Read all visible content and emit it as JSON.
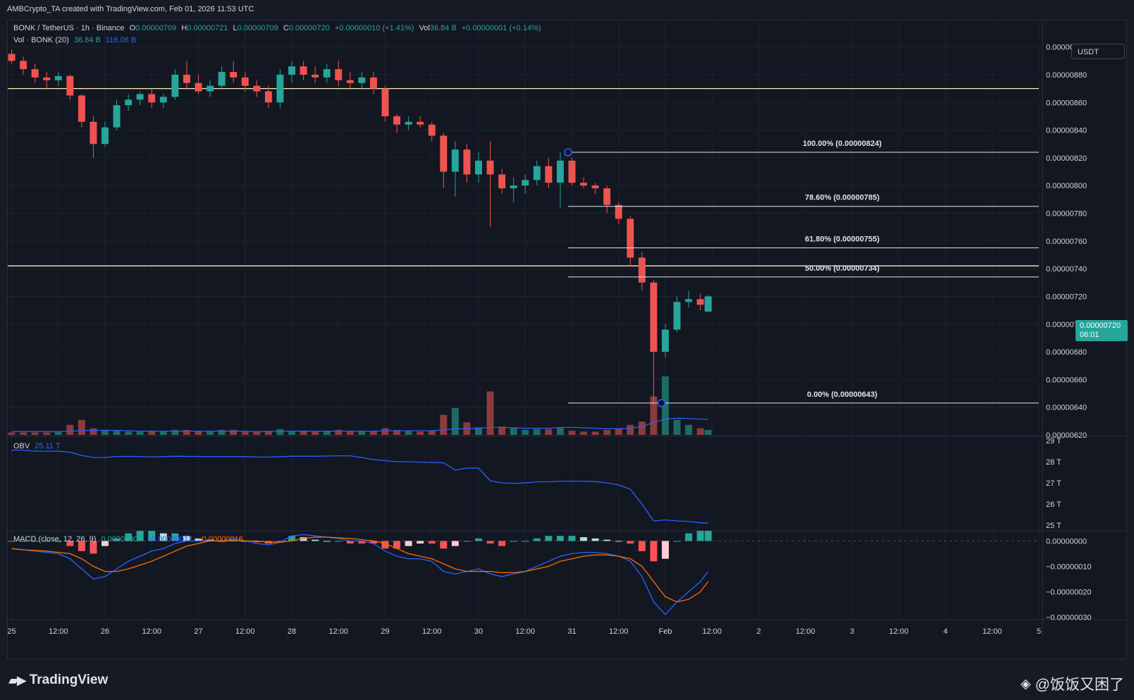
{
  "header": {
    "credit": "AMBCrypto_TA created with TradingView.com, Feb 01, 2026 11:53 UTC"
  },
  "legend": {
    "symbol": "BONK / TetherUS · 1h · Binance",
    "o_label": "O",
    "o": "0.00000709",
    "h_label": "H",
    "h": "0.00000721",
    "l_label": "L",
    "l": "0.00000709",
    "c_label": "C",
    "c": "0.00000720",
    "change": "+0.00000010 (+1.41%)",
    "vol_label": "Vol",
    "vol": "36.84 B",
    "vol_change": "+0.00000001 (+0.14%)",
    "vol_ind": "Vol · BONK (20)",
    "vol_val": "36.84 B",
    "vol_ma": "116.06 B",
    "obv_label": "OBV",
    "obv_val": "25.11 T",
    "macd_label": "MACD (close, 12, 26, 9)",
    "macd_hist": "0.00000004",
    "macd_line": "−0.00000012",
    "macd_signal": "−0.00000016"
  },
  "currency_button": "USDT",
  "last_price": {
    "price": "0.00000720",
    "countdown": "06:01"
  },
  "colors": {
    "up": "#26a69a",
    "down": "#ef5350",
    "up_vol": "#1e6b64",
    "down_vol": "#8c3b3d",
    "vol_ma": "#2962ff",
    "obv": "#2962ff",
    "macd": "#2962ff",
    "signal": "#ff6d00",
    "hist_up_strong": "#26a69a",
    "hist_up_weak": "#b2dfdb",
    "hist_down_strong": "#ff5252",
    "hist_down_weak": "#ffcdd2",
    "level": "#ffeeb0",
    "fib": "#e0e3eb"
  },
  "footer": {
    "brand": "TradingView",
    "watermark": "@饭饭又困了"
  },
  "chart_data": {
    "type": "candlestick",
    "y_axis": {
      "range": [
        6.2e-06,
        9.1e-06
      ],
      "ticks": [
        "0.00000900",
        "0.00000880",
        "0.00000860",
        "0.00000840",
        "0.00000820",
        "0.00000800",
        "0.00000780",
        "0.00000760",
        "0.00000740",
        "0.00000720",
        "0.00000700",
        "0.00000680",
        "0.00000660",
        "0.00000640",
        "0.00000620"
      ],
      "tick_values": [
        9e-06,
        8.8e-06,
        8.6e-06,
        8.4e-06,
        8.2e-06,
        8e-06,
        7.8e-06,
        7.6e-06,
        7.4e-06,
        7.2e-06,
        7e-06,
        6.8e-06,
        6.6e-06,
        6.4e-06,
        6.2e-06
      ]
    },
    "x_axis": {
      "start": "2026-01-24T23:00",
      "end": "2026-02-05T00:00",
      "ticks": [
        {
          "label": "25",
          "t": "2026-01-25T00:00"
        },
        {
          "label": "12:00",
          "t": "2026-01-25T12:00"
        },
        {
          "label": "26",
          "t": "2026-01-26T00:00"
        },
        {
          "label": "12:00",
          "t": "2026-01-26T12:00"
        },
        {
          "label": "27",
          "t": "2026-01-27T00:00"
        },
        {
          "label": "12:00",
          "t": "2026-01-27T12:00"
        },
        {
          "label": "28",
          "t": "2026-01-28T00:00"
        },
        {
          "label": "12:00",
          "t": "2026-01-28T12:00"
        },
        {
          "label": "29",
          "t": "2026-01-29T00:00"
        },
        {
          "label": "12:00",
          "t": "2026-01-29T12:00"
        },
        {
          "label": "30",
          "t": "2026-01-30T00:00"
        },
        {
          "label": "12:00",
          "t": "2026-01-30T12:00"
        },
        {
          "label": "31",
          "t": "2026-01-31T00:00"
        },
        {
          "label": "12:00",
          "t": "2026-01-31T12:00"
        },
        {
          "label": "Feb",
          "t": "2026-02-01T00:00"
        },
        {
          "label": "12:00",
          "t": "2026-02-01T12:00"
        },
        {
          "label": "2",
          "t": "2026-02-02T00:00"
        },
        {
          "label": "12:00",
          "t": "2026-02-02T12:00"
        },
        {
          "label": "3",
          "t": "2026-02-03T00:00"
        },
        {
          "label": "12:00",
          "t": "2026-02-03T12:00"
        },
        {
          "label": "4",
          "t": "2026-02-04T00:00"
        },
        {
          "label": "12:00",
          "t": "2026-02-04T12:00"
        },
        {
          "label": "5",
          "t": "2026-02-05T00:00"
        }
      ]
    },
    "candles": [
      {
        "t": "2026-01-25T00:00",
        "o": 8.95e-06,
        "h": 8.98e-06,
        "l": 8.88e-06,
        "c": 8.9e-06
      },
      {
        "t": "2026-01-25T03:00",
        "o": 8.9e-06,
        "h": 8.93e-06,
        "l": 8.8e-06,
        "c": 8.84e-06
      },
      {
        "t": "2026-01-25T06:00",
        "o": 8.84e-06,
        "h": 8.88e-06,
        "l": 8.74e-06,
        "c": 8.78e-06
      },
      {
        "t": "2026-01-25T09:00",
        "o": 8.78e-06,
        "h": 8.82e-06,
        "l": 8.7e-06,
        "c": 8.76e-06
      },
      {
        "t": "2026-01-25T12:00",
        "o": 8.76e-06,
        "h": 8.82e-06,
        "l": 8.72e-06,
        "c": 8.79e-06
      },
      {
        "t": "2026-01-25T15:00",
        "o": 8.79e-06,
        "h": 8.8e-06,
        "l": 8.62e-06,
        "c": 8.65e-06
      },
      {
        "t": "2026-01-25T18:00",
        "o": 8.65e-06,
        "h": 8.66e-06,
        "l": 8.42e-06,
        "c": 8.46e-06
      },
      {
        "t": "2026-01-25T21:00",
        "o": 8.46e-06,
        "h": 8.5e-06,
        "l": 8.2e-06,
        "c": 8.3e-06
      },
      {
        "t": "2026-01-26T00:00",
        "o": 8.3e-06,
        "h": 8.46e-06,
        "l": 8.28e-06,
        "c": 8.42e-06
      },
      {
        "t": "2026-01-26T03:00",
        "o": 8.42e-06,
        "h": 8.62e-06,
        "l": 8.4e-06,
        "c": 8.58e-06
      },
      {
        "t": "2026-01-26T06:00",
        "o": 8.58e-06,
        "h": 8.66e-06,
        "l": 8.54e-06,
        "c": 8.62e-06
      },
      {
        "t": "2026-01-26T09:00",
        "o": 8.62e-06,
        "h": 8.68e-06,
        "l": 8.58e-06,
        "c": 8.66e-06
      },
      {
        "t": "2026-01-26T12:00",
        "o": 8.66e-06,
        "h": 8.7e-06,
        "l": 8.56e-06,
        "c": 8.6e-06
      },
      {
        "t": "2026-01-26T15:00",
        "o": 8.6e-06,
        "h": 8.66e-06,
        "l": 8.56e-06,
        "c": 8.64e-06
      },
      {
        "t": "2026-01-26T18:00",
        "o": 8.64e-06,
        "h": 8.84e-06,
        "l": 8.62e-06,
        "c": 8.8e-06
      },
      {
        "t": "2026-01-26T21:00",
        "o": 8.8e-06,
        "h": 8.9e-06,
        "l": 8.7e-06,
        "c": 8.74e-06
      },
      {
        "t": "2026-01-27T00:00",
        "o": 8.74e-06,
        "h": 8.8e-06,
        "l": 8.66e-06,
        "c": 8.68e-06
      },
      {
        "t": "2026-01-27T03:00",
        "o": 8.68e-06,
        "h": 8.76e-06,
        "l": 8.64e-06,
        "c": 8.72e-06
      },
      {
        "t": "2026-01-27T06:00",
        "o": 8.72e-06,
        "h": 8.86e-06,
        "l": 8.7e-06,
        "c": 8.82e-06
      },
      {
        "t": "2026-01-27T09:00",
        "o": 8.82e-06,
        "h": 8.9e-06,
        "l": 8.74e-06,
        "c": 8.78e-06
      },
      {
        "t": "2026-01-27T12:00",
        "o": 8.78e-06,
        "h": 8.82e-06,
        "l": 8.68e-06,
        "c": 8.72e-06
      },
      {
        "t": "2026-01-27T15:00",
        "o": 8.72e-06,
        "h": 8.76e-06,
        "l": 8.64e-06,
        "c": 8.68e-06
      },
      {
        "t": "2026-01-27T18:00",
        "o": 8.68e-06,
        "h": 8.72e-06,
        "l": 8.56e-06,
        "c": 8.6e-06
      },
      {
        "t": "2026-01-27T21:00",
        "o": 8.6e-06,
        "h": 8.84e-06,
        "l": 8.56e-06,
        "c": 8.8e-06
      },
      {
        "t": "2026-01-28T00:00",
        "o": 8.8e-06,
        "h": 8.9e-06,
        "l": 8.74e-06,
        "c": 8.86e-06
      },
      {
        "t": "2026-01-28T03:00",
        "o": 8.86e-06,
        "h": 8.9e-06,
        "l": 8.76e-06,
        "c": 8.8e-06
      },
      {
        "t": "2026-01-28T06:00",
        "o": 8.8e-06,
        "h": 8.86e-06,
        "l": 8.74e-06,
        "c": 8.78e-06
      },
      {
        "t": "2026-01-28T09:00",
        "o": 8.78e-06,
        "h": 8.88e-06,
        "l": 8.74e-06,
        "c": 8.84e-06
      },
      {
        "t": "2026-01-28T12:00",
        "o": 8.84e-06,
        "h": 8.9e-06,
        "l": 8.72e-06,
        "c": 8.76e-06
      },
      {
        "t": "2026-01-28T15:00",
        "o": 8.76e-06,
        "h": 8.82e-06,
        "l": 8.7e-06,
        "c": 8.74e-06
      },
      {
        "t": "2026-01-28T18:00",
        "o": 8.74e-06,
        "h": 8.82e-06,
        "l": 8.7e-06,
        "c": 8.78e-06
      },
      {
        "t": "2026-01-28T21:00",
        "o": 8.78e-06,
        "h": 8.82e-06,
        "l": 8.66e-06,
        "c": 8.7e-06
      },
      {
        "t": "2026-01-29T00:00",
        "o": 8.7e-06,
        "h": 8.72e-06,
        "l": 8.46e-06,
        "c": 8.5e-06
      },
      {
        "t": "2026-01-29T03:00",
        "o": 8.5e-06,
        "h": 8.52e-06,
        "l": 8.38e-06,
        "c": 8.44e-06
      },
      {
        "t": "2026-01-29T06:00",
        "o": 8.44e-06,
        "h": 8.5e-06,
        "l": 8.4e-06,
        "c": 8.46e-06
      },
      {
        "t": "2026-01-29T09:00",
        "o": 8.46e-06,
        "h": 8.5e-06,
        "l": 8.42e-06,
        "c": 8.44e-06
      },
      {
        "t": "2026-01-29T12:00",
        "o": 8.44e-06,
        "h": 8.46e-06,
        "l": 8.32e-06,
        "c": 8.36e-06
      },
      {
        "t": "2026-01-29T15:00",
        "o": 8.36e-06,
        "h": 8.38e-06,
        "l": 7.98e-06,
        "c": 8.1e-06
      },
      {
        "t": "2026-01-29T18:00",
        "o": 8.1e-06,
        "h": 8.32e-06,
        "l": 7.92e-06,
        "c": 8.26e-06
      },
      {
        "t": "2026-01-29T21:00",
        "o": 8.26e-06,
        "h": 8.3e-06,
        "l": 8.02e-06,
        "c": 8.08e-06
      },
      {
        "t": "2026-01-30T00:00",
        "o": 8.08e-06,
        "h": 8.24e-06,
        "l": 8.02e-06,
        "c": 8.18e-06
      },
      {
        "t": "2026-01-30T03:00",
        "o": 8.18e-06,
        "h": 8.32e-06,
        "l": 7.7e-06,
        "c": 8.08e-06
      },
      {
        "t": "2026-01-30T06:00",
        "o": 8.08e-06,
        "h": 8.12e-06,
        "l": 7.94e-06,
        "c": 7.98e-06
      },
      {
        "t": "2026-01-30T09:00",
        "o": 7.98e-06,
        "h": 8.06e-06,
        "l": 7.88e-06,
        "c": 8e-06
      },
      {
        "t": "2026-01-30T12:00",
        "o": 8e-06,
        "h": 8.08e-06,
        "l": 7.94e-06,
        "c": 8.04e-06
      },
      {
        "t": "2026-01-30T15:00",
        "o": 8.04e-06,
        "h": 8.18e-06,
        "l": 8e-06,
        "c": 8.14e-06
      },
      {
        "t": "2026-01-30T18:00",
        "o": 8.14e-06,
        "h": 8.2e-06,
        "l": 7.98e-06,
        "c": 8.02e-06
      },
      {
        "t": "2026-01-30T21:00",
        "o": 8.02e-06,
        "h": 8.24e-06,
        "l": 7.84e-06,
        "c": 8.18e-06
      },
      {
        "t": "2026-01-31T00:00",
        "o": 8.18e-06,
        "h": 8.2e-06,
        "l": 8e-06,
        "c": 8.02e-06
      },
      {
        "t": "2026-01-31T03:00",
        "o": 8.02e-06,
        "h": 8.06e-06,
        "l": 7.98e-06,
        "c": 8e-06
      },
      {
        "t": "2026-01-31T06:00",
        "o": 8e-06,
        "h": 8.02e-06,
        "l": 7.94e-06,
        "c": 7.98e-06
      },
      {
        "t": "2026-01-31T09:00",
        "o": 7.98e-06,
        "h": 8e-06,
        "l": 7.8e-06,
        "c": 7.86e-06
      },
      {
        "t": "2026-01-31T12:00",
        "o": 7.86e-06,
        "h": 7.88e-06,
        "l": 7.72e-06,
        "c": 7.76e-06
      },
      {
        "t": "2026-01-31T15:00",
        "o": 7.76e-06,
        "h": 7.78e-06,
        "l": 7.42e-06,
        "c": 7.48e-06
      },
      {
        "t": "2026-01-31T18:00",
        "o": 7.48e-06,
        "h": 7.52e-06,
        "l": 7.24e-06,
        "c": 7.3e-06
      },
      {
        "t": "2026-01-31T21:00",
        "o": 7.3e-06,
        "h": 7.32e-06,
        "l": 6.43e-06,
        "c": 6.8e-06
      },
      {
        "t": "2026-02-01T00:00",
        "o": 6.8e-06,
        "h": 7e-06,
        "l": 6.76e-06,
        "c": 6.96e-06
      },
      {
        "t": "2026-02-01T03:00",
        "o": 6.96e-06,
        "h": 7.2e-06,
        "l": 6.94e-06,
        "c": 7.16e-06
      },
      {
        "t": "2026-02-01T06:00",
        "o": 7.16e-06,
        "h": 7.24e-06,
        "l": 7.12e-06,
        "c": 7.18e-06
      },
      {
        "t": "2026-02-01T09:00",
        "o": 7.18e-06,
        "h": 7.22e-06,
        "l": 7.1e-06,
        "c": 7.14e-06
      },
      {
        "t": "2026-02-01T11:00",
        "o": 7.09e-06,
        "h": 7.21e-06,
        "l": 7.09e-06,
        "c": 7.2e-06
      }
    ],
    "volume_ma": [
      0.4,
      0.4,
      0.4,
      0.4,
      0.4,
      0.45,
      0.5,
      0.55,
      0.55,
      0.55,
      0.5,
      0.45,
      0.45,
      0.45,
      0.45,
      0.45,
      0.45,
      0.45,
      0.45,
      0.45,
      0.45,
      0.4,
      0.4,
      0.45,
      0.45,
      0.45,
      0.45,
      0.45,
      0.45,
      0.45,
      0.45,
      0.45,
      0.5,
      0.5,
      0.5,
      0.5,
      0.5,
      0.6,
      0.75,
      0.75,
      0.8,
      0.9,
      0.9,
      0.85,
      0.8,
      0.8,
      0.8,
      0.9,
      0.9,
      0.85,
      0.8,
      0.75,
      0.75,
      0.8,
      1.0,
      1.5,
      1.9,
      2.0,
      1.95,
      1.9,
      1.85
    ],
    "volume": [
      0.3,
      0.3,
      0.3,
      0.3,
      0.4,
      1.2,
      1.8,
      0.8,
      0.6,
      0.5,
      0.4,
      0.4,
      0.5,
      0.4,
      0.6,
      0.6,
      0.5,
      0.4,
      0.6,
      0.6,
      0.4,
      0.4,
      0.5,
      0.7,
      0.5,
      0.5,
      0.5,
      0.5,
      0.6,
      0.4,
      0.5,
      0.5,
      0.8,
      0.6,
      0.5,
      0.4,
      0.5,
      2.4,
      3.2,
      1.5,
      0.9,
      5.2,
      1.0,
      0.8,
      0.6,
      0.7,
      0.7,
      0.9,
      0.5,
      0.4,
      0.4,
      0.6,
      0.8,
      1.2,
      1.6,
      4.6,
      7.0,
      1.8,
      1.2,
      0.8,
      0.6
    ],
    "obv": {
      "ticks": [
        "29 T",
        "28 T",
        "27 T",
        "26 T",
        "25 T"
      ],
      "tick_values": [
        29,
        28,
        27,
        26,
        25
      ],
      "range": [
        24.8,
        29.2
      ],
      "values": [
        28.55,
        28.55,
        28.5,
        28.5,
        28.5,
        28.45,
        28.3,
        28.2,
        28.2,
        28.25,
        28.25,
        28.25,
        28.22,
        28.24,
        28.26,
        28.25,
        28.25,
        28.24,
        28.24,
        28.25,
        28.24,
        28.22,
        28.22,
        28.24,
        28.26,
        28.26,
        28.26,
        28.27,
        28.28,
        28.28,
        28.2,
        28.1,
        28.05,
        28.0,
        28.0,
        27.98,
        27.97,
        27.95,
        27.6,
        27.7,
        27.7,
        27.1,
        27.0,
        26.98,
        27.0,
        27.05,
        27.05,
        27.08,
        27.08,
        27.08,
        27.06,
        27.0,
        26.9,
        26.7,
        26.0,
        25.2,
        25.25,
        25.2,
        25.18,
        25.11,
        25.11
      ]
    },
    "macd": {
      "ticks": [
        "0.00000000",
        "−0.00000010",
        "−0.00000020",
        "−0.00000030"
      ],
      "tick_values": [
        0,
        -1e-07,
        -2e-07,
        -3e-07
      ],
      "range": [
        -3.1e-07,
        4e-08
      ],
      "macd_values": [
        -3e-08,
        -3.5e-08,
        -4e-08,
        -4.5e-08,
        -5e-08,
        -7e-08,
        -1.1e-07,
        -1.5e-07,
        -1.4e-07,
        -1.1e-07,
        -8e-08,
        -6e-08,
        -4e-08,
        -3e-08,
        -1e-08,
        0.0,
        0.0,
        0.0,
        0.0,
        1e-08,
        0.0,
        -1e-08,
        -1.5e-08,
        -5e-09,
        2e-08,
        2.5e-08,
        2e-08,
        1.5e-08,
        1e-08,
        0.0,
        0.0,
        -1e-08,
        -4e-08,
        -6e-08,
        -7e-08,
        -7e-08,
        -8e-08,
        -1.2e-07,
        -1.3e-07,
        -1.2e-07,
        -1.1e-07,
        -1.3e-07,
        -1.4e-07,
        -1.3e-07,
        -1.2e-07,
        -1e-07,
        -8e-08,
        -6e-08,
        -5e-08,
        -4.5e-08,
        -4.5e-08,
        -5e-08,
        -6e-08,
        -8e-08,
        -1.4e-07,
        -2.4e-07,
        -2.9e-07,
        -2.4e-07,
        -2e-07,
        -1.6e-07,
        -1.2e-07
      ],
      "signal_values": [
        -3e-08,
        -3.5e-08,
        -3.7e-08,
        -4e-08,
        -4.5e-08,
        -5e-08,
        -7e-08,
        -1e-07,
        -1.2e-07,
        -1.2e-07,
        -1.1e-07,
        -9.5e-08,
        -8e-08,
        -6e-08,
        -4e-08,
        -2e-08,
        -1e-08,
        0.0,
        0.0,
        0.0,
        0.0,
        0.0,
        -5e-09,
        -5e-09,
        0.0,
        1e-08,
        1.5e-08,
        1.5e-08,
        1.2e-08,
        1e-08,
        5e-09,
        0.0,
        -1e-08,
        -3e-08,
        -5e-08,
        -6e-08,
        -7e-08,
        -9e-08,
        -1.1e-07,
        -1.2e-07,
        -1.2e-07,
        -1.2e-07,
        -1.25e-07,
        -1.25e-07,
        -1.2e-07,
        -1.1e-07,
        -1e-07,
        -8e-08,
        -7e-08,
        -6e-08,
        -5.5e-08,
        -5.5e-08,
        -6e-08,
        -7e-08,
        -1e-07,
        -1.6e-07,
        -2.2e-07,
        -2.4e-07,
        -2.3e-07,
        -2e-07,
        -1.6e-07
      ],
      "hist_values": [
        0,
        0,
        0,
        0,
        0,
        -2e-08,
        -4e-08,
        -5e-08,
        -2e-08,
        1e-08,
        3e-08,
        4e-08,
        4e-08,
        3e-08,
        3e-08,
        2e-08,
        1e-08,
        5e-09,
        0.0,
        5e-09,
        0.0,
        -5e-09,
        -1e-08,
        0.0,
        2e-08,
        1.5e-08,
        5e-09,
        0.0,
        0.0,
        -1e-08,
        -1e-08,
        -1e-08,
        -3e-08,
        -3e-08,
        -2e-08,
        -1e-08,
        -1e-08,
        -3e-08,
        -2e-08,
        0.0,
        1e-08,
        -1e-08,
        -2e-08,
        0.0,
        0.0,
        1e-08,
        2e-08,
        2e-08,
        2e-08,
        1.5e-08,
        1e-08,
        5e-09,
        0.0,
        -1e-08,
        -4e-08,
        -8e-08,
        -7e-08,
        0.0,
        3e-08,
        4e-08,
        4e-08
      ]
    },
    "levels": [
      {
        "name": "resistance",
        "price": 8.7e-06
      },
      {
        "name": "support",
        "price": 7.42e-06
      }
    ],
    "fibonacci": {
      "start": "2026-01-30T23:00",
      "high_anchor": {
        "t": "2026-01-30T23:00",
        "price": 8.24e-06
      },
      "low_anchor": {
        "t": "2026-01-31T23:00",
        "price": 6.43e-06
      },
      "levels": [
        {
          "label": "100.00% (0.00000824)",
          "price": 8.24e-06
        },
        {
          "label": "78.60% (0.00000785)",
          "price": 7.85e-06
        },
        {
          "label": "61.80% (0.00000755)",
          "price": 7.55e-06
        },
        {
          "label": "50.00% (0.00000734)",
          "price": 7.34e-06
        },
        {
          "label": "0.00% (0.00000643)",
          "price": 6.43e-06
        }
      ]
    }
  }
}
